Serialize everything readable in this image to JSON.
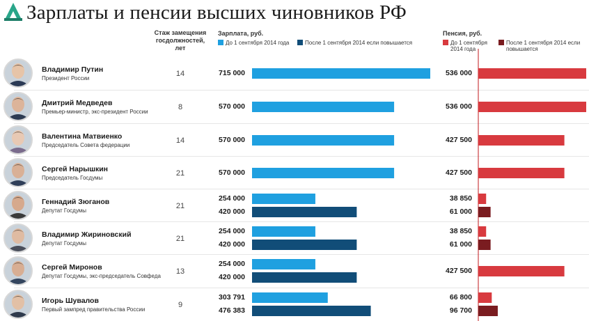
{
  "header": {
    "title": "Зарплаты и пенсии высших чиновников РФ",
    "tenure_label": "Стаж замещения госдолжностей, лет",
    "salary_label": "Зарплата, руб.",
    "pension_label": "Пенсия, руб.",
    "legend_salary_before": "До 1 сентября 2014 года",
    "legend_salary_after": "После 1 сентября 2014 если повышается",
    "legend_pension_before": "До 1 сентября 2014 года",
    "legend_pension_after": "После 1 сентября 2014 если повышается"
  },
  "colors": {
    "salary_before": "#1fa0e0",
    "salary_after": "#114d78",
    "pension_before": "#d83a3f",
    "pension_after": "#7a1c20",
    "axis_line": "#c0181e"
  },
  "officials": [
    {
      "name": "Владимир Путин",
      "role": "Президент России",
      "tenure": "14"
    },
    {
      "name": "Дмитрий Медведев",
      "role": "Премьер-министр, экс-президент России",
      "tenure": "8"
    },
    {
      "name": "Валентина Матвиенко",
      "role": "Председатель Совета федерации",
      "tenure": "14"
    },
    {
      "name": "Сергей Нарышкин",
      "role": "Председатель Госдумы",
      "tenure": "21"
    },
    {
      "name": "Геннадий Зюганов",
      "role": "Депутат Госдумы",
      "tenure": "21"
    },
    {
      "name": "Владимир Жириновский",
      "role": "Депутат Госдумы",
      "tenure": "21"
    },
    {
      "name": "Сергей Миронов",
      "role": "Депутат Госдумы, экс-председатель Совфеда",
      "tenure": "13"
    },
    {
      "name": "Игорь Шувалов",
      "role": "Первый зампред правительства России",
      "tenure": "9"
    }
  ],
  "chart_data": {
    "type": "bar",
    "title": "Зарплаты и пенсии высших чиновников РФ",
    "categories": [
      "Владимир Путин",
      "Дмитрий Медведев",
      "Валентина Матвиенко",
      "Сергей Нарышкин",
      "Геннадий Зюганов",
      "Владимир Жириновский",
      "Сергей Миронов",
      "Игорь Шувалов"
    ],
    "panels": [
      {
        "name": "Зарплата, руб.",
        "series": [
          {
            "name": "До 1 сентября 2014 года",
            "values": [
              715000,
              570000,
              570000,
              570000,
              254000,
              254000,
              254000,
              303791
            ],
            "labels": [
              "715 000",
              "570 000",
              "570 000",
              "570 000",
              "254 000",
              "254 000",
              "254 000",
              "303 791"
            ]
          },
          {
            "name": "После 1 сентября 2014 если повышается",
            "values": [
              null,
              null,
              null,
              null,
              420000,
              420000,
              420000,
              476383
            ],
            "labels": [
              null,
              null,
              null,
              null,
              "420 000",
              "420 000",
              "420 000",
              "476 383"
            ]
          }
        ]
      },
      {
        "name": "Пенсия, руб.",
        "series": [
          {
            "name": "До 1 сентября 2014 года",
            "values": [
              536000,
              536000,
              427500,
              427500,
              38850,
              38850,
              427500,
              66800
            ],
            "labels": [
              "536 000",
              "536 000",
              "427 500",
              "427 500",
              "38 850",
              "38 850",
              "427 500",
              "66 800"
            ]
          },
          {
            "name": "После 1 сентября 2014 если повышается",
            "values": [
              null,
              null,
              null,
              null,
              61000,
              61000,
              null,
              96700
            ],
            "labels": [
              null,
              null,
              null,
              null,
              "61 000",
              "61 000",
              null,
              "96 700"
            ]
          }
        ]
      }
    ],
    "legend_position": "top",
    "grid": false
  }
}
